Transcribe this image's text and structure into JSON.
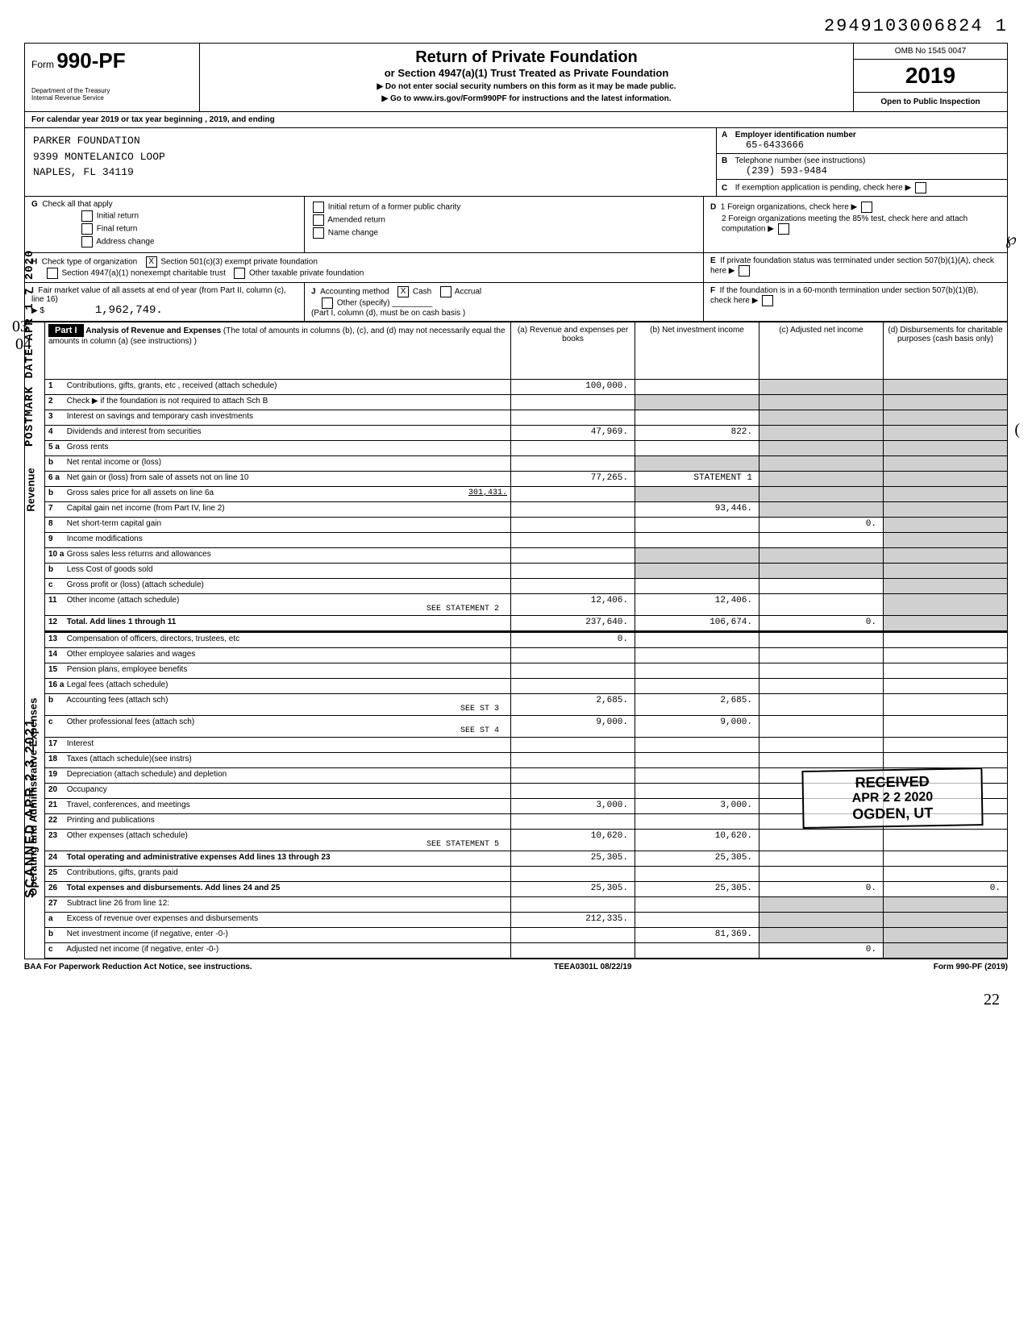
{
  "top_id": "2949103006824  1",
  "header": {
    "form_prefix": "Form",
    "form_number": "990-PF",
    "dept1": "Department of the Treasury",
    "dept2": "Internal Revenue Service",
    "title": "Return of Private Foundation",
    "subtitle": "or Section 4947(a)(1) Trust Treated as Private Foundation",
    "note1": "▶ Do not enter social security numbers on this form as it may be made public.",
    "note2": "▶ Go to www.irs.gov/Form990PF for instructions and the latest information.",
    "omb": "OMB No 1545 0047",
    "year": "2019",
    "open": "Open to Public Inspection"
  },
  "calendar_line": "For calendar year 2019 or tax year beginning                              , 2019, and ending",
  "filer": {
    "name": "PARKER FOUNDATION",
    "addr1": "9399 MONTELANICO LOOP",
    "addr2": "NAPLES, FL 34119"
  },
  "right_block": {
    "A_label": "Employer identification number",
    "A_val": "65-6433666",
    "B_label": "Telephone number (see instructions)",
    "B_val": "(239) 593-9484",
    "C_label": "If exemption application is pending, check here",
    "D1_label": "1 Foreign organizations, check here",
    "D2_label": "2 Foreign organizations meeting the 85% test, check here and attach computation",
    "E_label": "If private foundation status was terminated under section 507(b)(1)(A), check here",
    "F_label": "If the foundation is in a 60-month termination under section 507(b)(1)(B), check here"
  },
  "G": {
    "label": "Check all that apply",
    "initial": "Initial return",
    "final": "Final return",
    "address": "Address change",
    "initial_pub": "Initial return of a former public charity",
    "amended": "Amended return",
    "name_change": "Name change"
  },
  "H": {
    "label": "Check type of organization",
    "c3": "Section 501(c)(3) exempt private foundation",
    "c3_checked": "X",
    "nonexempt": "Section 4947(a)(1) nonexempt charitable trust",
    "other_tax": "Other taxable private foundation"
  },
  "I": {
    "label": "Fair market value of all assets at end of year (from Part II, column (c), line 16)",
    "value": "1,962,749."
  },
  "J": {
    "label": "Accounting method",
    "cash": "Cash",
    "cash_checked": "X",
    "accrual": "Accrual",
    "other": "Other (specify)",
    "note": "(Part I, column (d), must be on cash basis )"
  },
  "part1": {
    "label": "Part I",
    "title": "Analysis of Revenue and Expenses",
    "note": "(The total of amounts in columns (b), (c), and (d) may not necessarily equal the amounts in column (a) (see instructions) )",
    "col_a": "(a) Revenue and expenses per books",
    "col_b": "(b) Net investment income",
    "col_c": "(c) Adjusted net income",
    "col_d": "(d) Disbursements for charitable purposes (cash basis only)"
  },
  "rows": {
    "r1": {
      "n": "1",
      "desc": "Contributions, gifts, grants, etc , received (attach schedule)",
      "a": "100,000."
    },
    "r2": {
      "n": "2",
      "desc": "Check ▶        if the foundation is not required to attach Sch  B"
    },
    "r3": {
      "n": "3",
      "desc": "Interest on savings and temporary cash investments"
    },
    "r4": {
      "n": "4",
      "desc": "Dividends and interest from securities",
      "a": "47,969.",
      "b": "822."
    },
    "r5a": {
      "n": "5 a",
      "desc": "Gross rents"
    },
    "r5b": {
      "n": "b",
      "desc": "Net rental income or (loss)"
    },
    "r6a": {
      "n": "6 a",
      "desc": "Net gain or (loss) from sale of assets not on line 10",
      "a": "77,265.",
      "b": "STATEMENT 1"
    },
    "r6b": {
      "n": "b",
      "desc": "Gross sales price for all assets on line 6a",
      "val": "301,431."
    },
    "r7": {
      "n": "7",
      "desc": "Capital gain net income (from Part IV, line 2)",
      "b": "93,446."
    },
    "r8": {
      "n": "8",
      "desc": "Net short-term capital gain",
      "c": "0."
    },
    "r9": {
      "n": "9",
      "desc": "Income modifications"
    },
    "r10a": {
      "n": "10 a",
      "desc": "Gross sales less returns and allowances"
    },
    "r10b": {
      "n": "b",
      "desc": "Less  Cost of goods sold"
    },
    "r10c": {
      "n": "c",
      "desc": "Gross profit or (loss) (attach schedule)"
    },
    "r11": {
      "n": "11",
      "desc": "Other income (attach schedule)",
      "extra": "SEE STATEMENT 2",
      "a": "12,406.",
      "b": "12,406."
    },
    "r12": {
      "n": "12",
      "desc": "Total. Add lines 1 through 11",
      "a": "237,640.",
      "b": "106,674.",
      "c": "0."
    },
    "r13": {
      "n": "13",
      "desc": "Compensation of officers, directors, trustees, etc",
      "a": "0."
    },
    "r14": {
      "n": "14",
      "desc": "Other employee salaries and wages"
    },
    "r15": {
      "n": "15",
      "desc": "Pension plans, employee benefits"
    },
    "r16a": {
      "n": "16 a",
      "desc": "Legal fees (attach schedule)"
    },
    "r16b": {
      "n": "b",
      "desc": "Accounting fees (attach sch)",
      "extra": "SEE ST 3",
      "a": "2,685.",
      "b": "2,685."
    },
    "r16c": {
      "n": "c",
      "desc": "Other professional fees (attach sch)",
      "extra": "SEE ST 4",
      "a": "9,000.",
      "b": "9,000."
    },
    "r17": {
      "n": "17",
      "desc": "Interest"
    },
    "r18": {
      "n": "18",
      "desc": "Taxes (attach schedule)(see instrs)"
    },
    "r19": {
      "n": "19",
      "desc": "Depreciation (attach schedule) and depletion"
    },
    "r20": {
      "n": "20",
      "desc": "Occupancy"
    },
    "r21": {
      "n": "21",
      "desc": "Travel, conferences, and meetings",
      "a": "3,000.",
      "b": "3,000."
    },
    "r22": {
      "n": "22",
      "desc": "Printing and publications"
    },
    "r23": {
      "n": "23",
      "desc": "Other expenses (attach schedule)",
      "extra": "SEE STATEMENT 5",
      "a": "10,620.",
      "b": "10,620."
    },
    "r24": {
      "n": "24",
      "desc": "Total operating and administrative expenses  Add lines 13 through 23",
      "a": "25,305.",
      "b": "25,305."
    },
    "r25": {
      "n": "25",
      "desc": "Contributions, gifts, grants paid"
    },
    "r26": {
      "n": "26",
      "desc": "Total expenses and disbursements. Add lines 24 and 25",
      "a": "25,305.",
      "b": "25,305.",
      "c": "0.",
      "d": "0."
    },
    "r27": {
      "n": "27",
      "desc": "Subtract line 26 from line 12:"
    },
    "r27a": {
      "n": "a",
      "desc": "Excess of revenue over expenses and disbursements",
      "a": "212,335."
    },
    "r27b": {
      "n": "b",
      "desc": "Net investment income (if negative, enter -0-)",
      "b": "81,369."
    },
    "r27c": {
      "n": "c",
      "desc": "Adjusted net income (if negative, enter -0-)",
      "c": "0."
    }
  },
  "footer": {
    "baa": "BAA  For Paperwork Reduction Act Notice, see instructions.",
    "code": "TEEA0301L  08/22/19",
    "formref": "Form 990-PF (2019)"
  },
  "stamps": {
    "postmark": "POSTMARK DATE  APR 1 7 2020",
    "scanned": "SCANNED APR 2 3 2021",
    "received_title": "RECEIVED",
    "received_date": "APR 2 2 2020",
    "received_loc": "OGDEN, UT",
    "hw1": "03",
    "hw2": "04",
    "hw3": "℘",
    "hw4": "22",
    "hw5": "("
  },
  "style": {
    "mono_font": "Courier New",
    "bg": "#ffffff",
    "text": "#000000",
    "shade": "#d0d0d0"
  }
}
